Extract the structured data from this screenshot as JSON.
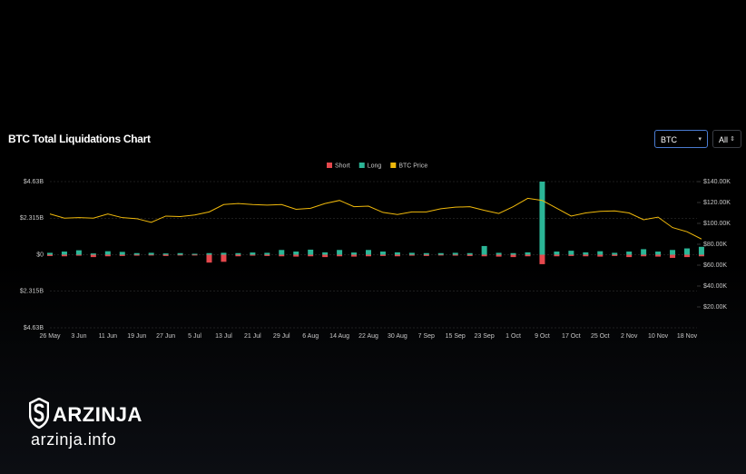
{
  "header": {
    "title": "BTC Total Liquidations Chart",
    "coin_select": "BTC",
    "range_select": "All"
  },
  "watermark": {
    "brand": "ARZINJA",
    "site": "arzinja.info"
  },
  "chart_data": {
    "type": "combo",
    "categories": [
      "26 May",
      null,
      "3 Jun",
      null,
      "11 Jun",
      null,
      "19 Jun",
      null,
      "27 Jun",
      null,
      "5 Jul",
      null,
      "13 Jul",
      null,
      "21 Jul",
      null,
      "29 Jul",
      null,
      "6 Aug",
      null,
      "14 Aug",
      null,
      "22 Aug",
      null,
      "30 Aug",
      null,
      "7 Sep",
      null,
      "15 Sep",
      null,
      "23 Sep",
      null,
      "1 Oct",
      null,
      "9 Oct",
      null,
      "17 Oct",
      null,
      "25 Oct",
      null,
      "2 Nov",
      null,
      "10 Nov",
      null,
      "18 Nov",
      null
    ],
    "series": [
      {
        "name": "Short",
        "color": "#e5484d",
        "mark": "bar",
        "axis": "y",
        "values": [
          -0.08,
          -0.1,
          -0.06,
          -0.15,
          -0.1,
          -0.08,
          -0.06,
          -0.05,
          -0.08,
          -0.05,
          -0.05,
          -0.5,
          -0.45,
          -0.1,
          -0.06,
          -0.08,
          -0.1,
          -0.12,
          -0.1,
          -0.15,
          -0.1,
          -0.12,
          -0.1,
          -0.08,
          -0.1,
          -0.06,
          -0.08,
          -0.05,
          -0.06,
          -0.08,
          -0.1,
          -0.12,
          -0.15,
          -0.1,
          -0.6,
          -0.1,
          -0.08,
          -0.1,
          -0.12,
          -0.08,
          -0.15,
          -0.1,
          -0.12,
          -0.2,
          -0.15,
          -0.1
        ]
      },
      {
        "name": "Long",
        "color": "#2bb596",
        "mark": "bar",
        "axis": "y",
        "values": [
          0.12,
          0.2,
          0.28,
          0.08,
          0.22,
          0.18,
          0.1,
          0.12,
          0.08,
          0.1,
          0.06,
          0.1,
          0.12,
          0.1,
          0.14,
          0.12,
          0.3,
          0.2,
          0.32,
          0.15,
          0.3,
          0.14,
          0.3,
          0.2,
          0.15,
          0.12,
          0.1,
          0.1,
          0.12,
          0.1,
          0.55,
          0.12,
          0.1,
          0.15,
          4.63,
          0.2,
          0.25,
          0.15,
          0.22,
          0.12,
          0.2,
          0.35,
          0.2,
          0.3,
          0.4,
          0.5
        ]
      },
      {
        "name": "BTC Price",
        "color": "#f0b90b",
        "mark": "line",
        "axis": "y2",
        "values": [
          109000,
          105000,
          105500,
          105000,
          109000,
          105500,
          104500,
          101000,
          107000,
          106500,
          108000,
          111000,
          118000,
          119000,
          118000,
          117500,
          118000,
          113500,
          114500,
          119000,
          122000,
          116000,
          116500,
          110500,
          108500,
          111000,
          111000,
          114000,
          115500,
          116000,
          112500,
          109500,
          116000,
          124000,
          122000,
          114500,
          107000,
          110000,
          111500,
          112000,
          110000,
          103500,
          106000,
          96000,
          92000,
          85000
        ]
      }
    ],
    "ylim": [
      -4.63,
      4.63
    ],
    "yticks": [
      {
        "value": -4.63,
        "label": "$4.63B"
      },
      {
        "value": -2.315,
        "label": "$2.315B"
      },
      {
        "value": 0,
        "label": "$0"
      },
      {
        "value": 2.315,
        "label": "$2.315B"
      },
      {
        "value": 4.63,
        "label": "$4.63B"
      }
    ],
    "y2lim": [
      0,
      140000
    ],
    "y2ticks": [
      {
        "value": 20000,
        "label": "$20.00K"
      },
      {
        "value": 40000,
        "label": "$40.00K"
      },
      {
        "value": 60000,
        "label": "$60.00K"
      },
      {
        "value": 80000,
        "label": "$80.00K"
      },
      {
        "value": 100000,
        "label": "$100.00K"
      },
      {
        "value": 120000,
        "label": "$120.00K"
      },
      {
        "value": 140000,
        "label": "$140.00K"
      }
    ],
    "grid": true,
    "legend": "top"
  }
}
